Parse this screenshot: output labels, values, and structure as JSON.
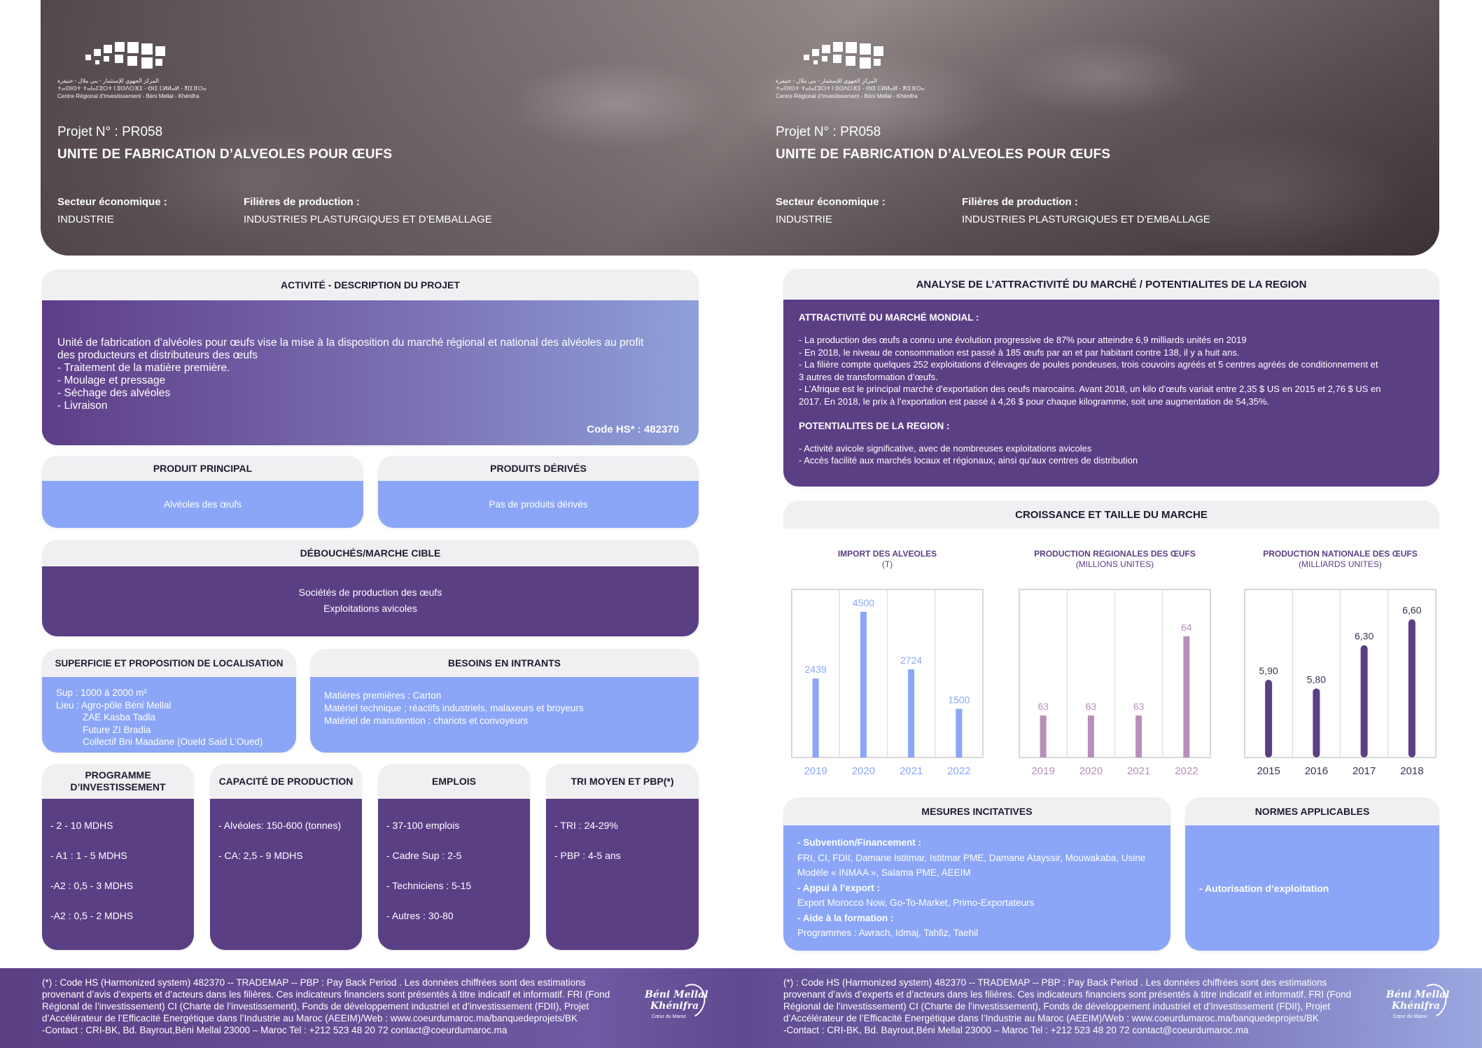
{
  "hero": {
    "logo_text_line1": "المركز الجهوي للإستثمار - بني ملال - خنيفرة",
    "logo_text_line2": "ⵜⴰⵙⵏⵙⵜ ⵜⴰⵏⴰⵎⵓⵔⵜ ⵏ ⵓⵙⴷⵔⴼⵉ - ⴱⵏⵉ ⵎⵍⵍⴰⵍ - ⵅⵏⵉⴼⵔⴰ",
    "logo_text_line3": "Centre Régional d'Investissement - Béni Mellal - Khénifra",
    "project_number": "Projet N° :  PR058",
    "project_title": "UNITE DE FABRICATION D’ALVEOLES POUR ŒUFS",
    "sector_label": "Secteur économique :",
    "sector_value": "INDUSTRIE",
    "filiere_label": "Filières de production :",
    "filiere_value": "INDUSTRIES PLASTURGIQUES ET D’EMBALLAGE"
  },
  "activite": {
    "title": "ACTIVITÉ - DESCRIPTION DU PROJET",
    "lines": [
      "Unité de fabrication d’alvéoles pour œufs vise la mise à la disposition du marché régional et national des alvéoles au profit",
      "des producteurs et distributeurs des œufs",
      "- Traitement de la matière première.",
      "- Moulage et pressage",
      "- Séchage des alvéoles",
      "- Livraison"
    ],
    "code_hs": "Code HS* : 482370"
  },
  "produit_principal": {
    "title": "PRODUIT PRINCIPAL",
    "value": "Alvéoles des œufs"
  },
  "produits_derives": {
    "title": "PRODUITS DÉRIVÉS",
    "value": "Pas de produits dérivés"
  },
  "debouches": {
    "title": "DÉBOUCHÉS/MARCHE CIBLE",
    "lines": [
      "Sociétés de production des œufs",
      "Exploitations avicoles"
    ]
  },
  "superficie": {
    "title": "SUPERFICIE ET PROPOSITION DE LOCALISATION",
    "lines": [
      "Sup : 1000 à 2000 m²",
      "Lieu : Agro-pôle Béni Mellal",
      "ZAE Kasba Tadla",
      "Future ZI Bradia",
      "Collectif Bni Maadane (Oueld Said L’Oued)"
    ]
  },
  "intrants": {
    "title": "BESOINS EN INTRANTS",
    "lines": [
      "Matières premières : Carton",
      "Matériel technique ; réactifs industriels, malaxeurs et broyeurs",
      "Matériel de manutention : chariots et convoyeurs"
    ]
  },
  "programme": {
    "title": "PROGRAMME D’INVESTISSEMENT",
    "lines": [
      "- 2 - 10 MDHS",
      "- A1 : 1 - 5 MDHS",
      "-A2 : 0,5 - 3 MDHS",
      "-A2 : 0,5 - 2 MDHS"
    ]
  },
  "capacite": {
    "title": "CAPACITÉ DE PRODUCTION",
    "lines": [
      "- Alvéoles: 150-600 (tonnes)",
      "- CA: 2,5 - 9 MDHS"
    ]
  },
  "emplois": {
    "title": "EMPLOIS",
    "lines": [
      "- 37-100 emplois",
      "- Cadre Sup : 2-5",
      "- Techniciens : 5-15",
      "- Autres  : 30-80"
    ]
  },
  "tri": {
    "title": "TRI MOYEN ET PBP(*)",
    "lines": [
      "- TRI : 24-29%",
      "- PBP : 4-5 ans"
    ]
  },
  "analyse": {
    "title": "ANALYSE DE L’ATTRACTIVITÉ DU MARCHÉ / POTENTIALITES DE LA REGION",
    "mondial_title": "ATTRACTIVITÉ DU MARCHÉ MONDIAL :",
    "mondial_lines": [
      "- La production des œufs a connu une évolution progressive de 87% pour atteindre 6,9 milliards unités en 2019",
      "- En 2018, le niveau de consommation est passé à 185 œufs par an et par habitant contre 138, il y a huit ans.",
      "- La filière compte quelques 252 exploitations d’élevages de poules pondeuses, trois couvoirs agréés et 5 centres agréés de conditionnement et",
      "3 autres de transformation d’œufs.",
      "- L’Afrique est le principal marché d’exportation des oeufs marocains. Avant 2018, un kilo d’œufs variait entre 2,35 $ US en 2015 et 2,76 $ US en",
      "2017. En 2018, le prix à l’exportation est passé à 4,26 $ pour chaque kilogramme, soit une augmentation de 54,35%."
    ],
    "region_title": "POTENTIALITES DE LA REGION :",
    "region_lines": [
      "- Activité avicole significative, avec de nombreuses exploitations avicoles",
      "- Accès facilité aux marchés locaux et régionaux, ainsi qu’aux centres de distribution"
    ]
  },
  "croissance": {
    "title": "CROISSANCE ET TAILLE DU MARCHE"
  },
  "chart_data": [
    {
      "type": "bar",
      "title": "IMPORT DES ALVEOLES",
      "subtitle": "(T)",
      "categories": [
        "2019",
        "2020",
        "2021",
        "2022"
      ],
      "values": [
        2439,
        4500,
        2724,
        1500
      ],
      "value_labels": [
        "2439",
        "4500",
        "2724",
        "1500"
      ],
      "color": "#8ba6f7",
      "ylim": [
        0,
        4800
      ],
      "grid": true
    },
    {
      "type": "bar",
      "title": "PRODUCTION REGIONALES DES ŒUFS",
      "subtitle": "(MILLIONS UNITES)",
      "categories": [
        "2019",
        "2020",
        "2021",
        "2022"
      ],
      "values": [
        63,
        63,
        63,
        64
      ],
      "value_labels": [
        "63",
        "63",
        "63",
        "64"
      ],
      "bar_heights_hint": "visual: 2022 bar is much taller than others",
      "color": "#b98fba",
      "grid": true
    },
    {
      "type": "bar",
      "title": "PRODUCTION NATIONALE DES ŒUFS",
      "subtitle": "(MILLIARDS UNITES)",
      "categories": [
        "2015",
        "2016",
        "2017",
        "2018"
      ],
      "values": [
        5.9,
        5.8,
        6.3,
        6.6
      ],
      "value_labels": [
        "5,90",
        "5,80",
        "6,30",
        "6,60"
      ],
      "color": "#5b3f85",
      "grid": true
    }
  ],
  "mesures": {
    "title": "MESURES INCITATIVES",
    "sub_title": " - Subvention/Financement :",
    "sub_text1": "FRI, CI, FDII, Damane Istitmar, Istitmar PME, Damane Atayssir, Mouwakaba, Usine",
    "sub_text2": "Modèle « INMAA », Salama PME, AEEIM",
    "export_title": "- Appui à l’export :",
    "export_text": "Export Morocco Now, Go-To-Market, Primo-Exportateurs",
    "formation_title": "- Aide à la formation :",
    "formation_text": "Programmes :  Awrach, Idmaj, Tahfiz, Taehil"
  },
  "normes": {
    "title": "NORMES APPLICABLES",
    "value": "- Autorisation d’exploitation"
  },
  "footer": {
    "lines": [
      "(*) : Code HS (Harmonized system) 482370 -- TRADEMAP -- PBP : Pay Back Period . Les données chiffrées sont des estimations",
      "provenant d’avis d’experts et d’acteurs dans les filières. Ces indicateurs financiers sont présentés à titre indicatif et informatif. FRI (Fond",
      "Régional de l’investissement) CI (Charte de l’investissement), Fonds de développement industriel et d’investissement (FDII), Projet",
      "d’Accélérateur de l’Efficacité Energétique dans l’Industrie au Maroc (AEEIM)/Web : www.coeurdumaroc.ma/banquedeprojets/BK",
      "-Contact : CRI-BK, Bd. Bayrout,Béni Mellal 23000 – Maroc Tel : +212 523 48 20 72 contact@coeurdumaroc.ma"
    ],
    "logo_line1": "Béni Mellal",
    "logo_line2": "Khénifra",
    "logo_line3": "Cœur du Maroc"
  }
}
